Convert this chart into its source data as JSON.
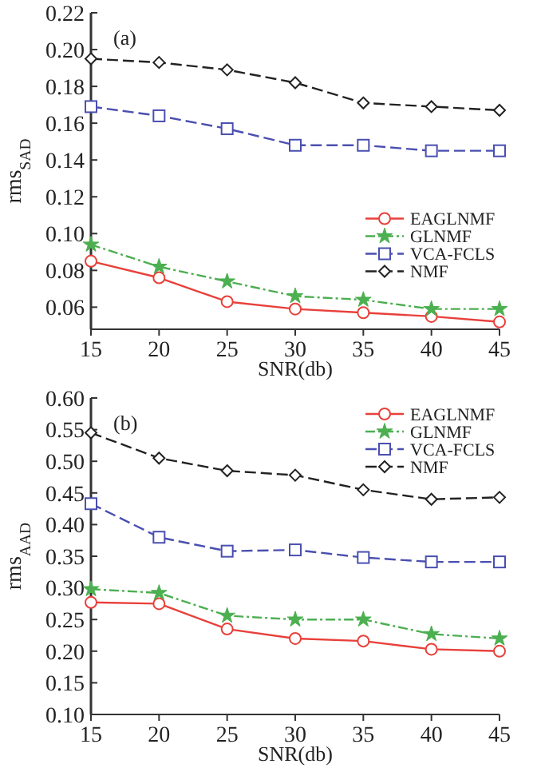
{
  "chart_data": [
    {
      "type": "line",
      "xlabel": "SNR(db)",
      "ylabel": "rms$_{SAD}$",
      "annotations": [
        "(a)"
      ],
      "x": [
        15,
        20,
        25,
        30,
        35,
        40,
        45
      ],
      "xlim": [
        15,
        45
      ],
      "xticks": [
        15,
        20,
        25,
        30,
        35,
        40,
        45
      ],
      "ylim": [
        0.048,
        0.22
      ],
      "yticks": [
        {
          "value": 0.06,
          "label": "0.06"
        },
        {
          "value": 0.08,
          "label": "0.08"
        },
        {
          "value": 0.1,
          "label": "0.10"
        },
        {
          "value": 0.12,
          "label": "0.12"
        },
        {
          "value": 0.14,
          "label": "0.14"
        },
        {
          "value": 0.16,
          "label": "0.16"
        },
        {
          "value": 0.18,
          "label": "0.18"
        },
        {
          "value": 0.2,
          "label": "0.20"
        },
        {
          "value": 0.22,
          "label": "0.22"
        }
      ],
      "grid": false,
      "legend": "right",
      "series": [
        {
          "name": "EAGLNMF",
          "color": "#e8403a",
          "marker": "circle",
          "line_style": "solid",
          "values": [
            0.085,
            0.076,
            0.063,
            0.059,
            0.057,
            0.055,
            0.052
          ]
        },
        {
          "name": "GLNMF",
          "color": "#4caf50",
          "marker": "star",
          "line_style": "dashdot",
          "values": [
            0.094,
            0.082,
            0.074,
            0.066,
            0.064,
            0.059,
            0.059
          ]
        },
        {
          "name": "VCA-FCLS",
          "color": "#4a4fb0",
          "marker": "square",
          "line_style": "dashed",
          "values": [
            0.169,
            0.164,
            0.157,
            0.148,
            0.148,
            0.145,
            0.145
          ]
        },
        {
          "name": "NMF",
          "color": "#222222",
          "marker": "diamond",
          "line_style": "dashed",
          "values": [
            0.195,
            0.193,
            0.189,
            0.182,
            0.171,
            0.169,
            0.167
          ]
        }
      ]
    },
    {
      "type": "line",
      "xlabel": "SNR(db)",
      "ylabel": "rms$_{AAD}$",
      "annotations": [
        "(b)"
      ],
      "x": [
        15,
        20,
        25,
        30,
        35,
        40,
        45
      ],
      "xlim": [
        15,
        45
      ],
      "xticks": [
        15,
        20,
        25,
        30,
        35,
        40,
        45
      ],
      "ylim": [
        0.1,
        0.6
      ],
      "yticks": [
        {
          "value": 0.1,
          "label": "0.10"
        },
        {
          "value": 0.15,
          "label": "0.15"
        },
        {
          "value": 0.2,
          "label": "0.20"
        },
        {
          "value": 0.25,
          "label": "0.25"
        },
        {
          "value": 0.3,
          "label": "0.30"
        },
        {
          "value": 0.35,
          "label": "0.35"
        },
        {
          "value": 0.4,
          "label": "0.40"
        },
        {
          "value": 0.45,
          "label": "0.45"
        },
        {
          "value": 0.5,
          "label": "0.50"
        },
        {
          "value": 0.55,
          "label": "0.55"
        },
        {
          "value": 0.6,
          "label": "0.60"
        }
      ],
      "grid": false,
      "legend": "top right",
      "series": [
        {
          "name": "EAGLNMF",
          "color": "#e8403a",
          "marker": "circle",
          "line_style": "solid",
          "values": [
            0.277,
            0.275,
            0.235,
            0.22,
            0.216,
            0.203,
            0.2
          ]
        },
        {
          "name": "GLNMF",
          "color": "#4caf50",
          "marker": "star",
          "line_style": "dashdot",
          "values": [
            0.298,
            0.292,
            0.256,
            0.25,
            0.25,
            0.227,
            0.22
          ]
        },
        {
          "name": "VCA-FCLS",
          "color": "#4a4fb0",
          "marker": "square",
          "line_style": "dashed",
          "values": [
            0.433,
            0.38,
            0.358,
            0.36,
            0.348,
            0.341,
            0.341
          ]
        },
        {
          "name": "NMF",
          "color": "#222222",
          "marker": "diamond",
          "line_style": "dashed",
          "values": [
            0.545,
            0.505,
            0.485,
            0.478,
            0.455,
            0.44,
            0.443
          ]
        }
      ]
    }
  ]
}
